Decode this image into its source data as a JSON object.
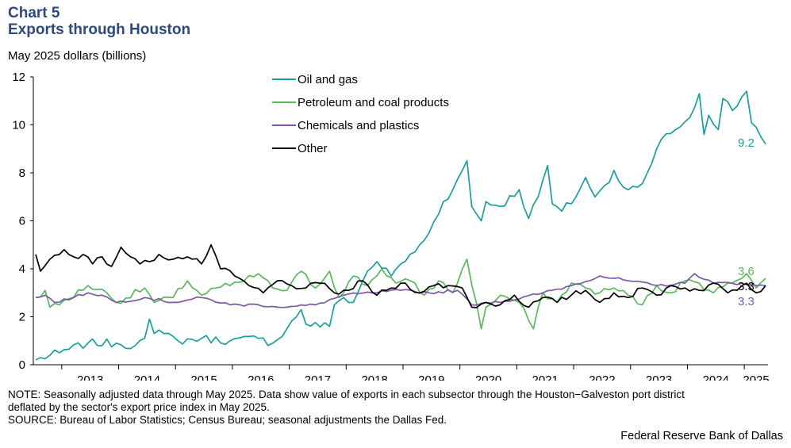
{
  "header": {
    "chart_number": "Chart 5",
    "title": "Exports through Houston",
    "y_unit": "May 2025 dollars (billions)"
  },
  "footer": {
    "note_line1": "NOTE: Seasonally adjusted data through May 2025. Data show value of exports in each subsector through the Houston−Galveston port district",
    "note_line2": "deflated by the sector's export price index in May 2025.",
    "source": "SOURCE: Bureau of Labor Statistics; Census Bureau; seasonal adjustments the Dallas Fed.",
    "credit": "Federal Reserve Bank of Dallas"
  },
  "chart_data": {
    "type": "line",
    "title": "Exports through Houston",
    "xlabel": "",
    "ylabel": "May 2025 dollars (billions)",
    "frequency": "monthly",
    "start": "2012-07",
    "end": "2025-05",
    "ylim": [
      0,
      12
    ],
    "yticks": [
      0,
      2,
      4,
      6,
      8,
      10,
      12
    ],
    "year_labels": [
      "2013",
      "2014",
      "2015",
      "2016",
      "2017",
      "2018",
      "2019",
      "2020",
      "2021",
      "2022",
      "2023",
      "2024",
      "2025"
    ],
    "legend_position": "top-center",
    "series": [
      {
        "name": "Oil and gas",
        "color": "#1A9E9E",
        "end_label": "9.2",
        "anchors": [
          [
            "2012-07",
            0.2
          ],
          [
            "2012-12",
            0.5
          ],
          [
            "2013-06",
            0.9
          ],
          [
            "2013-12",
            0.9
          ],
          [
            "2014-04",
            0.8
          ],
          [
            "2014-06",
            1.1
          ],
          [
            "2014-07",
            1.9
          ],
          [
            "2014-08",
            1.3
          ],
          [
            "2014-10",
            1.3
          ],
          [
            "2015-01",
            1.0
          ],
          [
            "2015-06",
            1.1
          ],
          [
            "2015-12",
            1.0
          ],
          [
            "2016-06",
            1.1
          ],
          [
            "2016-09",
            0.9
          ],
          [
            "2016-12",
            1.5
          ],
          [
            "2017-03",
            2.3
          ],
          [
            "2017-04",
            1.7
          ],
          [
            "2017-09",
            1.6
          ],
          [
            "2017-10",
            2.5
          ],
          [
            "2017-12",
            2.8
          ],
          [
            "2018-02",
            2.6
          ],
          [
            "2018-05",
            3.9
          ],
          [
            "2018-07",
            4.3
          ],
          [
            "2018-10",
            3.7
          ],
          [
            "2018-12",
            4.2
          ],
          [
            "2019-03",
            4.7
          ],
          [
            "2019-06",
            5.5
          ],
          [
            "2019-09",
            6.8
          ],
          [
            "2019-11",
            7.3
          ],
          [
            "2020-02",
            8.5
          ],
          [
            "2020-03",
            6.6
          ],
          [
            "2020-05",
            6.0
          ],
          [
            "2020-06",
            6.8
          ],
          [
            "2020-09",
            6.6
          ],
          [
            "2021-01",
            7.3
          ],
          [
            "2021-03",
            6.1
          ],
          [
            "2021-05",
            7.0
          ],
          [
            "2021-07",
            8.3
          ],
          [
            "2021-08",
            6.7
          ],
          [
            "2021-10",
            6.4
          ],
          [
            "2022-01",
            7.0
          ],
          [
            "2022-03",
            7.8
          ],
          [
            "2022-05",
            7.0
          ],
          [
            "2022-08",
            7.6
          ],
          [
            "2022-09",
            8.1
          ],
          [
            "2022-11",
            7.4
          ],
          [
            "2023-02",
            7.4
          ],
          [
            "2023-05",
            8.4
          ],
          [
            "2023-07",
            9.4
          ],
          [
            "2023-10",
            9.8
          ],
          [
            "2024-01",
            10.3
          ],
          [
            "2024-03",
            11.3
          ],
          [
            "2024-04",
            9.6
          ],
          [
            "2024-05",
            10.4
          ],
          [
            "2024-07",
            9.8
          ],
          [
            "2024-08",
            11.1
          ],
          [
            "2024-10",
            10.6
          ],
          [
            "2025-01",
            11.4
          ],
          [
            "2025-02",
            10.1
          ],
          [
            "2025-03",
            9.9
          ],
          [
            "2025-04",
            9.5
          ],
          [
            "2025-05",
            9.2
          ]
        ]
      },
      {
        "name": "Petroleum and coal products",
        "color": "#5CB85C",
        "end_label": "3.6",
        "anchors": [
          [
            "2012-07",
            2.8
          ],
          [
            "2012-09",
            3.1
          ],
          [
            "2012-10",
            2.4
          ],
          [
            "2012-12",
            2.5
          ],
          [
            "2013-06",
            3.3
          ],
          [
            "2013-10",
            3.0
          ],
          [
            "2013-12",
            2.6
          ],
          [
            "2014-06",
            3.2
          ],
          [
            "2014-08",
            2.6
          ],
          [
            "2014-12",
            2.8
          ],
          [
            "2015-03",
            3.5
          ],
          [
            "2015-06",
            2.9
          ],
          [
            "2015-09",
            3.2
          ],
          [
            "2015-12",
            3.3
          ],
          [
            "2016-03",
            3.5
          ],
          [
            "2016-06",
            3.8
          ],
          [
            "2016-09",
            3.2
          ],
          [
            "2016-12",
            3.1
          ],
          [
            "2017-03",
            3.9
          ],
          [
            "2017-06",
            3.2
          ],
          [
            "2017-09",
            3.9
          ],
          [
            "2017-11",
            2.8
          ],
          [
            "2018-02",
            3.7
          ],
          [
            "2018-05",
            3.3
          ],
          [
            "2018-08",
            4.0
          ],
          [
            "2018-11",
            3.4
          ],
          [
            "2019-02",
            3.5
          ],
          [
            "2019-05",
            2.9
          ],
          [
            "2019-08",
            3.5
          ],
          [
            "2019-11",
            3.0
          ],
          [
            "2020-02",
            4.4
          ],
          [
            "2020-05",
            1.5
          ],
          [
            "2020-06",
            2.4
          ],
          [
            "2020-09",
            2.9
          ],
          [
            "2021-01",
            2.6
          ],
          [
            "2021-04",
            1.5
          ],
          [
            "2021-06",
            3.0
          ],
          [
            "2021-09",
            2.6
          ],
          [
            "2021-12",
            3.4
          ],
          [
            "2022-03",
            3.2
          ],
          [
            "2022-06",
            3.0
          ],
          [
            "2022-09",
            3.2
          ],
          [
            "2022-12",
            2.9
          ],
          [
            "2023-03",
            2.5
          ],
          [
            "2023-06",
            3.3
          ],
          [
            "2023-09",
            3.0
          ],
          [
            "2023-12",
            3.5
          ],
          [
            "2024-03",
            3.4
          ],
          [
            "2024-06",
            3.0
          ],
          [
            "2024-09",
            3.4
          ],
          [
            "2025-01",
            3.8
          ],
          [
            "2025-03",
            3.2
          ],
          [
            "2025-05",
            3.6
          ]
        ]
      },
      {
        "name": "Chemicals and plastics",
        "color": "#7B59A7",
        "end_label": "3.3",
        "anchors": [
          [
            "2012-07",
            2.8
          ],
          [
            "2012-09",
            2.9
          ],
          [
            "2012-11",
            2.6
          ],
          [
            "2013-03",
            2.8
          ],
          [
            "2013-06",
            3.0
          ],
          [
            "2013-09",
            2.9
          ],
          [
            "2013-12",
            2.6
          ],
          [
            "2014-06",
            2.8
          ],
          [
            "2014-12",
            2.6
          ],
          [
            "2015-06",
            2.8
          ],
          [
            "2015-12",
            2.5
          ],
          [
            "2016-06",
            2.5
          ],
          [
            "2016-12",
            2.4
          ],
          [
            "2017-06",
            2.5
          ],
          [
            "2017-12",
            2.9
          ],
          [
            "2018-06",
            3.0
          ],
          [
            "2018-12",
            3.1
          ],
          [
            "2019-06",
            3.0
          ],
          [
            "2019-12",
            3.1
          ],
          [
            "2020-03",
            2.5
          ],
          [
            "2020-06",
            2.6
          ],
          [
            "2020-12",
            2.7
          ],
          [
            "2021-06",
            3.0
          ],
          [
            "2021-12",
            3.3
          ],
          [
            "2022-06",
            3.7
          ],
          [
            "2022-12",
            3.5
          ],
          [
            "2023-06",
            3.3
          ],
          [
            "2023-12",
            3.4
          ],
          [
            "2024-02",
            3.8
          ],
          [
            "2024-06",
            3.4
          ],
          [
            "2024-12",
            3.4
          ],
          [
            "2025-03",
            3.3
          ],
          [
            "2025-05",
            3.3
          ]
        ]
      },
      {
        "name": "Other",
        "color": "#000000",
        "end_label": "3.3",
        "anchors": [
          [
            "2012-07",
            4.6
          ],
          [
            "2012-08",
            3.9
          ],
          [
            "2012-10",
            4.4
          ],
          [
            "2013-01",
            4.8
          ],
          [
            "2013-03",
            4.5
          ],
          [
            "2013-05",
            4.6
          ],
          [
            "2013-07",
            4.2
          ],
          [
            "2013-09",
            4.5
          ],
          [
            "2013-11",
            4.1
          ],
          [
            "2014-01",
            4.9
          ],
          [
            "2014-03",
            4.5
          ],
          [
            "2014-05",
            4.2
          ],
          [
            "2014-07",
            4.3
          ],
          [
            "2014-09",
            4.6
          ],
          [
            "2014-12",
            4.4
          ],
          [
            "2015-03",
            4.5
          ],
          [
            "2015-06",
            4.2
          ],
          [
            "2015-08",
            5.0
          ],
          [
            "2015-10",
            4.0
          ],
          [
            "2016-01",
            3.7
          ],
          [
            "2016-04",
            3.3
          ],
          [
            "2016-07",
            3.0
          ],
          [
            "2016-10",
            3.5
          ],
          [
            "2017-01",
            3.3
          ],
          [
            "2017-04",
            3.2
          ],
          [
            "2017-07",
            3.4
          ],
          [
            "2017-10",
            3.0
          ],
          [
            "2018-01",
            3.1
          ],
          [
            "2018-04",
            3.5
          ],
          [
            "2018-07",
            2.9
          ],
          [
            "2018-10",
            3.2
          ],
          [
            "2019-01",
            3.4
          ],
          [
            "2019-04",
            3.0
          ],
          [
            "2019-07",
            3.3
          ],
          [
            "2019-10",
            3.3
          ],
          [
            "2020-01",
            3.2
          ],
          [
            "2020-03",
            2.4
          ],
          [
            "2020-06",
            2.6
          ],
          [
            "2020-09",
            2.5
          ],
          [
            "2020-12",
            2.9
          ],
          [
            "2021-03",
            2.4
          ],
          [
            "2021-06",
            2.8
          ],
          [
            "2021-09",
            2.6
          ],
          [
            "2021-12",
            2.9
          ],
          [
            "2022-03",
            3.1
          ],
          [
            "2022-06",
            2.6
          ],
          [
            "2022-09",
            3.0
          ],
          [
            "2022-12",
            2.8
          ],
          [
            "2023-03",
            3.2
          ],
          [
            "2023-06",
            2.9
          ],
          [
            "2023-09",
            3.3
          ],
          [
            "2023-12",
            3.2
          ],
          [
            "2024-03",
            3.1
          ],
          [
            "2024-06",
            3.4
          ],
          [
            "2024-09",
            3.0
          ],
          [
            "2024-12",
            3.3
          ],
          [
            "2025-01",
            3.4
          ],
          [
            "2025-03",
            3.0
          ],
          [
            "2025-05",
            3.3
          ]
        ]
      }
    ]
  }
}
